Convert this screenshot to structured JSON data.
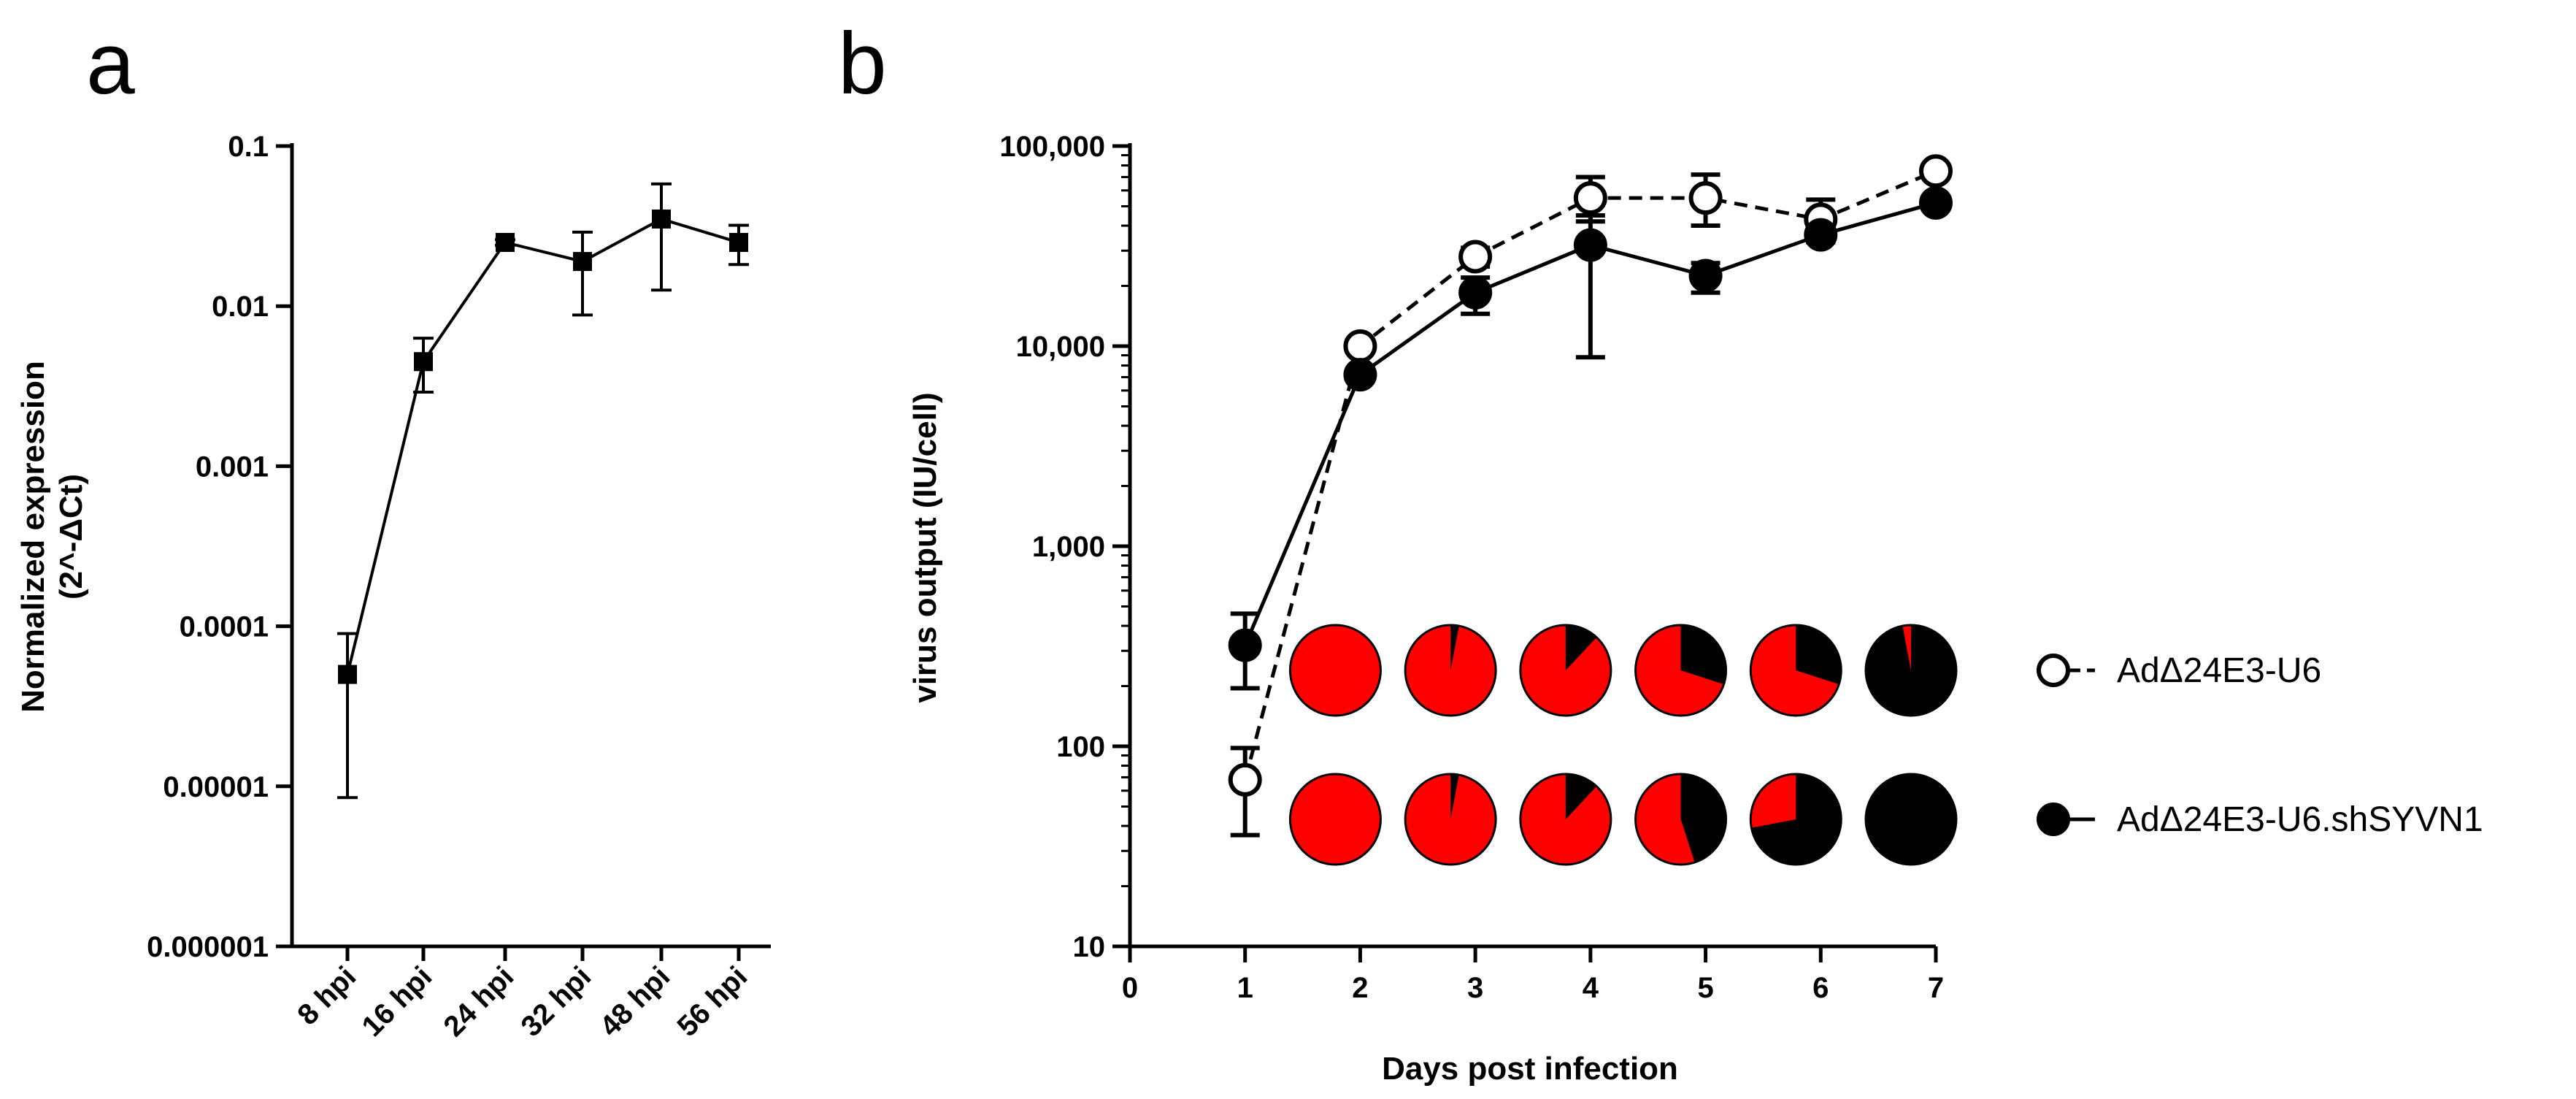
{
  "panels": {
    "a": {
      "letter": "a"
    },
    "b": {
      "letter": "b"
    }
  },
  "chart_data": [
    {
      "panel": "a",
      "type": "line",
      "xlabel": "",
      "ylabel": "Normalized expression",
      "ylabel_line2": "(2^-ΔCt)",
      "yscale": "log",
      "ylim": [
        1e-06,
        0.1
      ],
      "y_ticks": [
        1e-06,
        1e-05,
        0.0001,
        0.001,
        0.01,
        0.1
      ],
      "y_tick_labels": [
        "0.000001",
        "0.00001",
        "0.0001",
        "0.001",
        "0.01",
        "0.1"
      ],
      "categories": [
        "8 hpi",
        "16 hpi",
        "24 hpi",
        "32 hpi",
        "48 hpi",
        "56 hpi"
      ],
      "series": [
        {
          "marker": "square",
          "values": [
            5e-05,
            0.0045,
            0.025,
            0.019,
            0.035,
            0.025
          ],
          "err_high": [
            9e-05,
            0.0063,
            0.026,
            0.029,
            0.058,
            0.032
          ],
          "err_low": [
            8.5e-06,
            0.0029,
            0.024,
            0.0088,
            0.0126,
            0.0182
          ]
        }
      ]
    },
    {
      "panel": "b",
      "type": "line",
      "xlabel": "Days post infection",
      "ylabel": "virus output (IU/cell)",
      "yscale": "log",
      "xlim": [
        0,
        7
      ],
      "ylim": [
        10,
        100000
      ],
      "x_ticks": [
        0,
        1,
        2,
        3,
        4,
        5,
        6,
        7
      ],
      "y_ticks": [
        10,
        100,
        1000,
        10000,
        100000
      ],
      "y_tick_labels": [
        "10",
        "100",
        "1,000",
        "10,000",
        "100,000"
      ],
      "series": [
        {
          "name": "AdΔ24E3-U6",
          "marker": "open-circle",
          "line": "dashed",
          "x": [
            1,
            2,
            3,
            4,
            5,
            6,
            7
          ],
          "y": [
            68,
            10000,
            28000,
            55000,
            55000,
            43000,
            75000
          ],
          "err_high": [
            98,
            10500,
            31000,
            70000,
            72000,
            54000,
            78000
          ],
          "err_low": [
            36,
            9500,
            25000,
            42000,
            40000,
            34000,
            72000
          ]
        },
        {
          "name": "AdΔ24E3-U6.shSYVN1",
          "marker": "filled-circle",
          "line": "solid",
          "x": [
            1,
            2,
            3,
            4,
            5,
            6,
            7
          ],
          "y": [
            320,
            7200,
            18500,
            32000,
            22500,
            36000,
            52000
          ],
          "err_high": [
            460,
            7600,
            22000,
            45000,
            26000,
            39000,
            55000
          ],
          "err_low": [
            195,
            6800,
            14500,
            8800,
            18500,
            33000,
            49000
          ]
        }
      ],
      "pies": {
        "day_x": [
          2,
          3,
          4,
          5,
          6,
          7
        ],
        "colors": {
          "red": "#ff0000",
          "black": "#000000"
        },
        "rows": [
          {
            "series": "AdΔ24E3-U6",
            "black_fraction": [
              0.0,
              0.03,
              0.12,
              0.3,
              0.3,
              0.97
            ]
          },
          {
            "series": "AdΔ24E3-U6.shSYVN1",
            "black_fraction": [
              0.0,
              0.03,
              0.12,
              0.45,
              0.72,
              1.0
            ]
          }
        ]
      }
    }
  ]
}
